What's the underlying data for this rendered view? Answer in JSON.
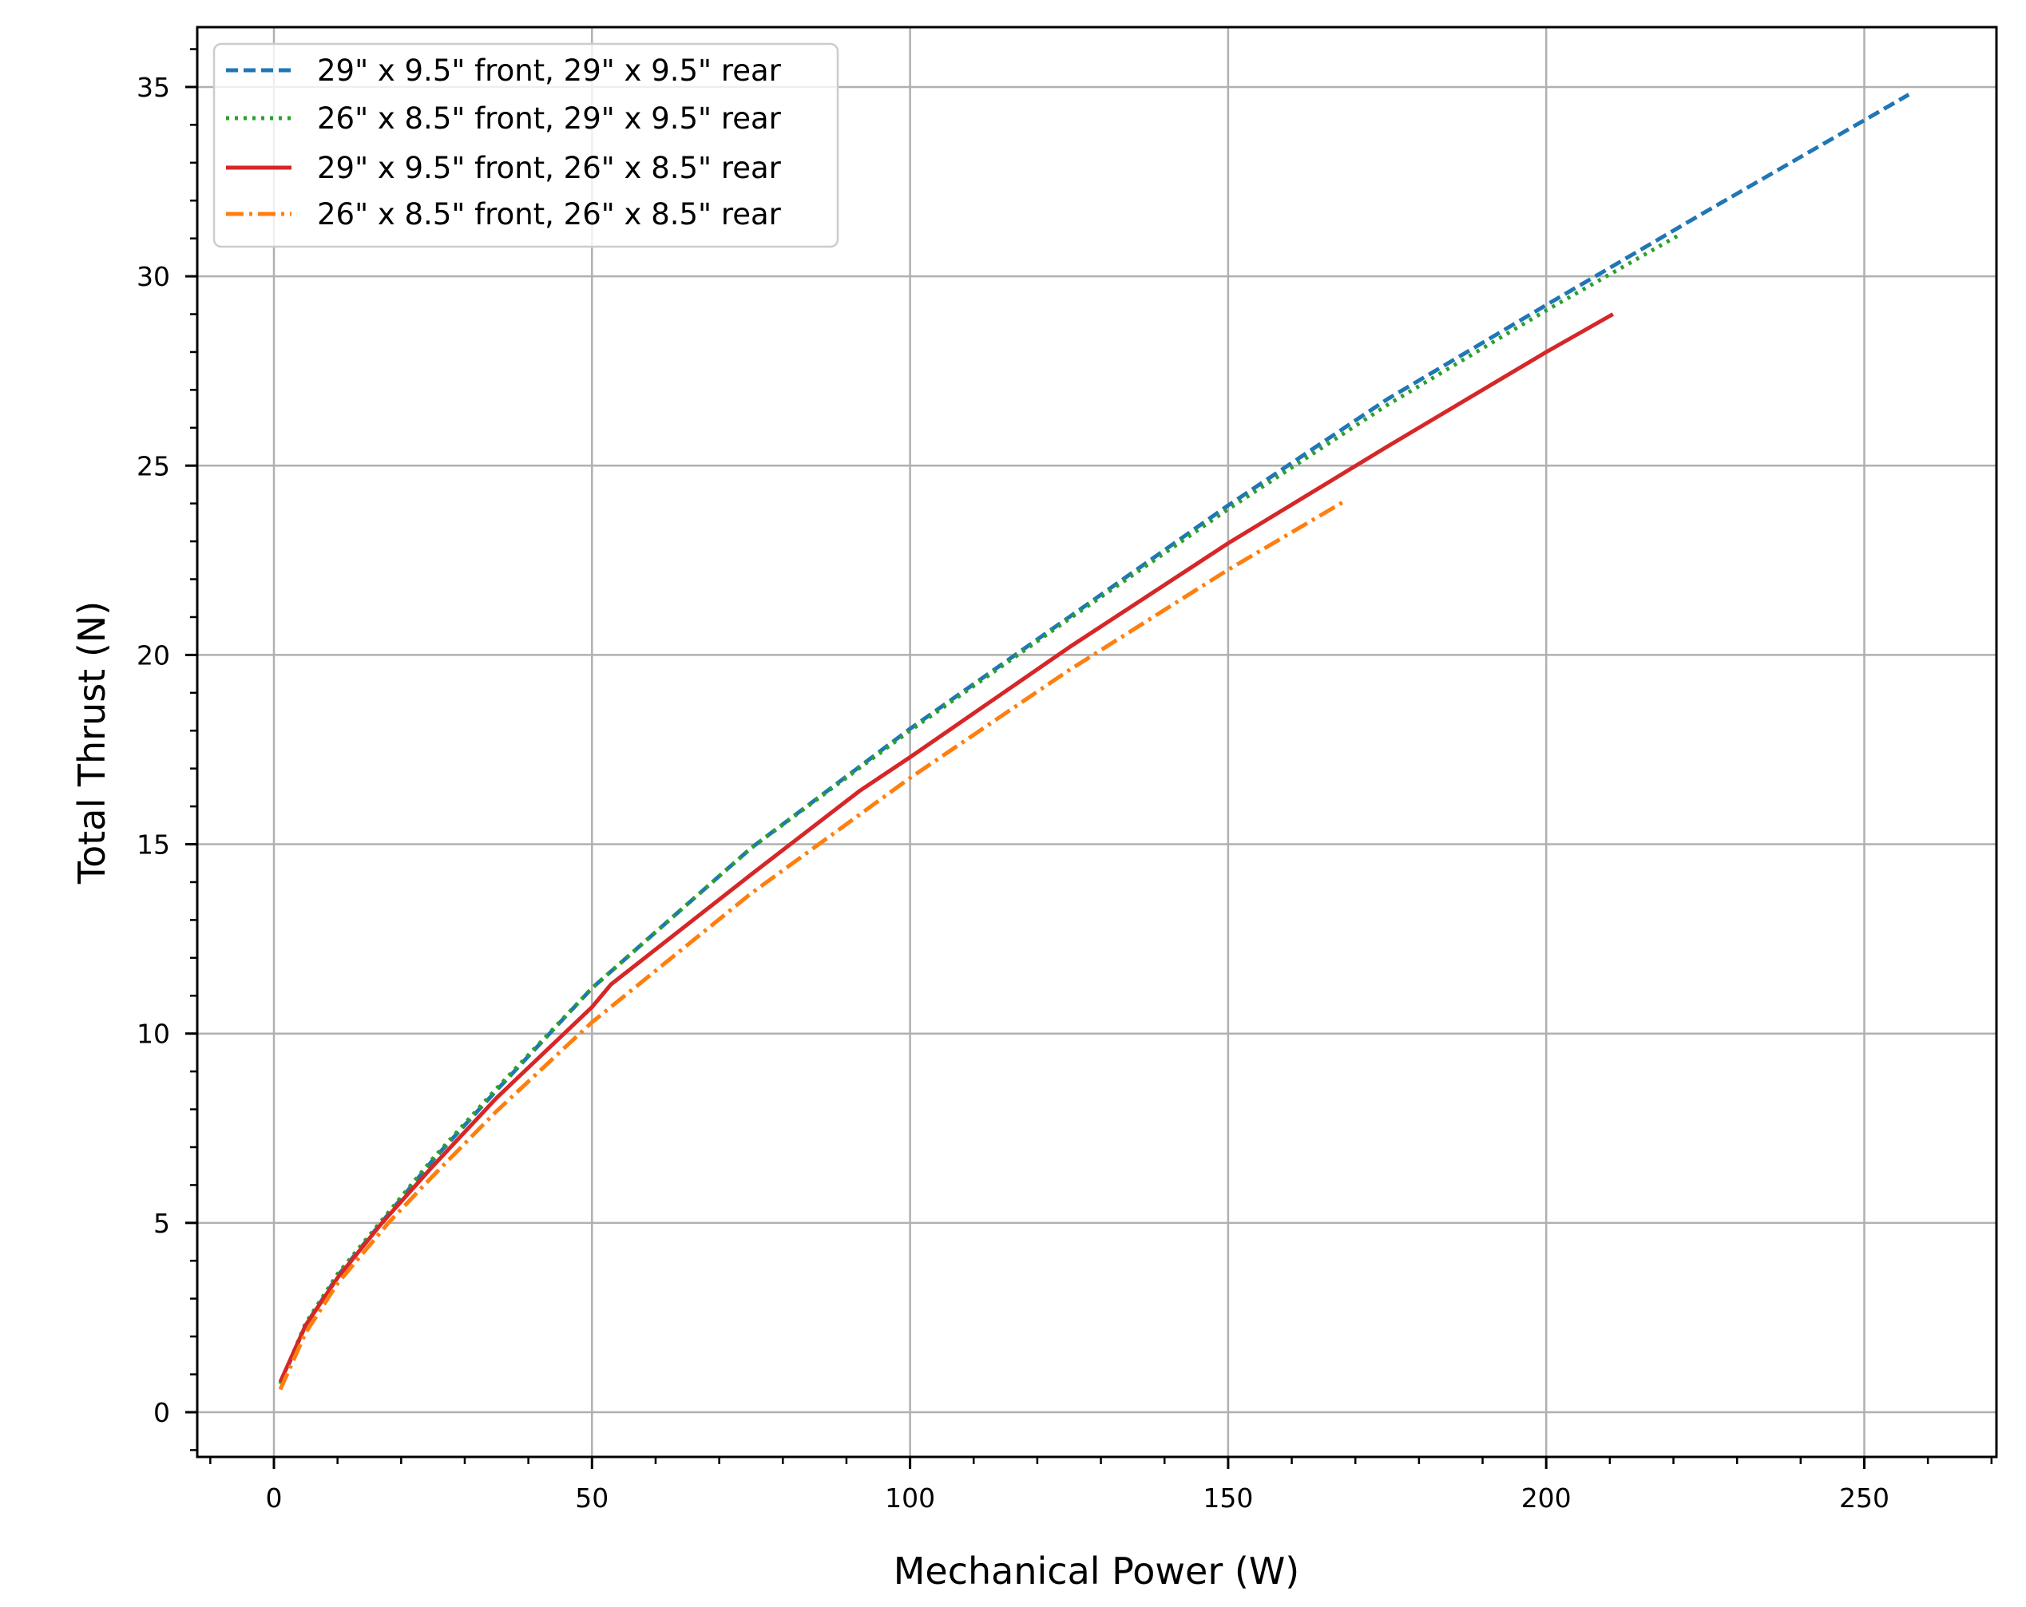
{
  "chart_data": {
    "type": "line",
    "title": "",
    "xlabel": "Mechanical Power (W)",
    "ylabel": "Total Thrust (N)",
    "xlim": [
      -12,
      270.8
    ],
    "ylim": [
      -1.18,
      36.6
    ],
    "xticks": [
      0,
      50,
      100,
      150,
      200,
      250
    ],
    "xtick_labels": [
      "0",
      "50",
      "100",
      "150",
      "200",
      "250"
    ],
    "yticks": [
      0,
      5,
      10,
      15,
      20,
      25,
      30,
      35
    ],
    "ytick_labels": [
      "0",
      "5",
      "10",
      "15",
      "20",
      "25",
      "30",
      "35"
    ],
    "x_minor_step": 10,
    "y_minor_step": 1,
    "grid": true,
    "legend_position": "upper left",
    "series": [
      {
        "name": "29\" x 9.5\" front, 29\" x 9.5\" rear",
        "color": "#1f77b4",
        "linestyle": "dashed",
        "x": [
          1,
          5,
          10,
          25,
          35,
          50,
          75,
          100,
          125,
          150,
          175,
          200,
          225,
          257
        ],
        "y": [
          0.75,
          2.3,
          3.6,
          6.66,
          8.5,
          11.2,
          14.9,
          18.05,
          21.0,
          23.95,
          26.75,
          29.24,
          31.7,
          34.8
        ]
      },
      {
        "name": "26\" x 8.5\" front, 29\" x 9.5\" rear",
        "color": "#2ca02c",
        "linestyle": "dotted",
        "x": [
          1,
          5,
          10,
          25,
          35,
          50,
          75,
          100,
          125,
          150,
          175,
          200,
          221
        ],
        "y": [
          0.75,
          2.35,
          3.65,
          6.7,
          8.55,
          11.2,
          14.9,
          18.0,
          20.95,
          23.85,
          26.6,
          29.1,
          31.1
        ]
      },
      {
        "name": "29\" x 9.5\" front, 26\" x 8.5\" rear",
        "color": "#d62728",
        "linestyle": "solid",
        "x": [
          1,
          5,
          10,
          17,
          25,
          35,
          50,
          53,
          75,
          92,
          100,
          125,
          145,
          150,
          175,
          200,
          210.5
        ],
        "y": [
          0.8,
          2.3,
          3.55,
          5.0,
          6.5,
          8.3,
          10.7,
          11.3,
          14.2,
          16.4,
          17.3,
          20.2,
          22.4,
          22.95,
          25.5,
          28.0,
          29.0
        ]
      },
      {
        "name": "26\" x 8.5\" front, 26\" x 8.5\" rear",
        "color": "#ff7f0e",
        "linestyle": "dashdot",
        "x": [
          1,
          5,
          10,
          18,
          25,
          35,
          50,
          75,
          100,
          125,
          150,
          168.7
        ],
        "y": [
          0.6,
          2.1,
          3.4,
          5.0,
          6.24,
          7.95,
          10.3,
          13.7,
          16.75,
          19.6,
          22.25,
          24.1
        ]
      }
    ]
  }
}
